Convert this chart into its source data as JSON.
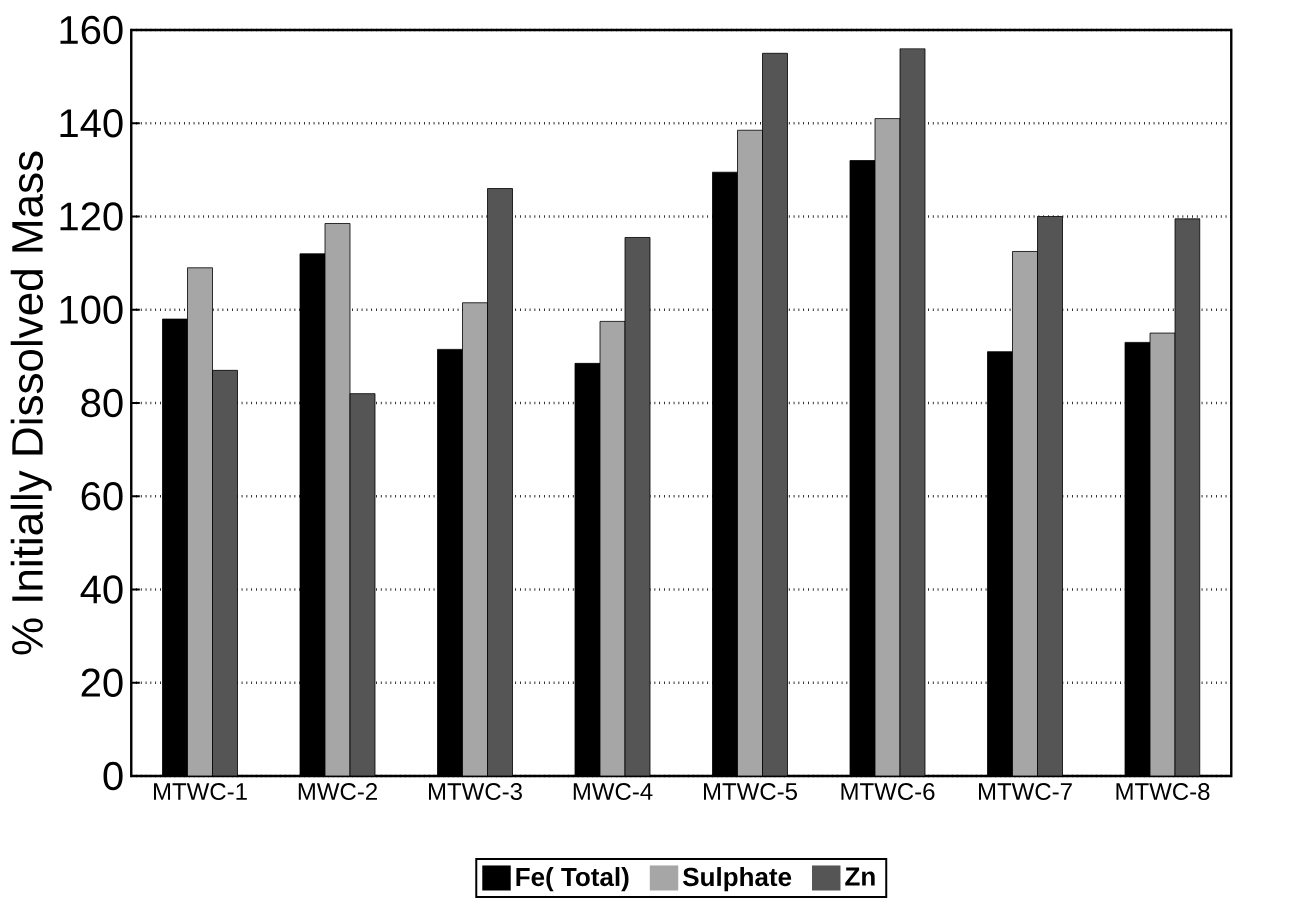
{
  "chart_data": {
    "type": "bar",
    "ylabel": "% Initially Dissolved Mass",
    "categories": [
      "MTWC-1",
      "MWC-2",
      "MTWC-3",
      "MWC-4",
      "MTWC-5",
      "MTWC-6",
      "MTWC-7",
      "MTWC-8"
    ],
    "series": [
      {
        "name": "Fe( Total)",
        "color": "#000000",
        "values": [
          98,
          112,
          91.5,
          88.5,
          129.5,
          132,
          91,
          93
        ]
      },
      {
        "name": "Sulphate",
        "color": "#a6a6a6",
        "values": [
          109,
          118.5,
          101.5,
          97.5,
          138.5,
          141,
          112.5,
          95
        ]
      },
      {
        "name": "Zn",
        "color": "#555555",
        "values": [
          87,
          82,
          126,
          115.5,
          155,
          156,
          120,
          119.5
        ]
      }
    ],
    "ylim": [
      0,
      160
    ],
    "yticks": [
      0,
      20,
      40,
      60,
      80,
      100,
      120,
      140,
      160
    ],
    "grid": "y",
    "legend": "bottom"
  }
}
